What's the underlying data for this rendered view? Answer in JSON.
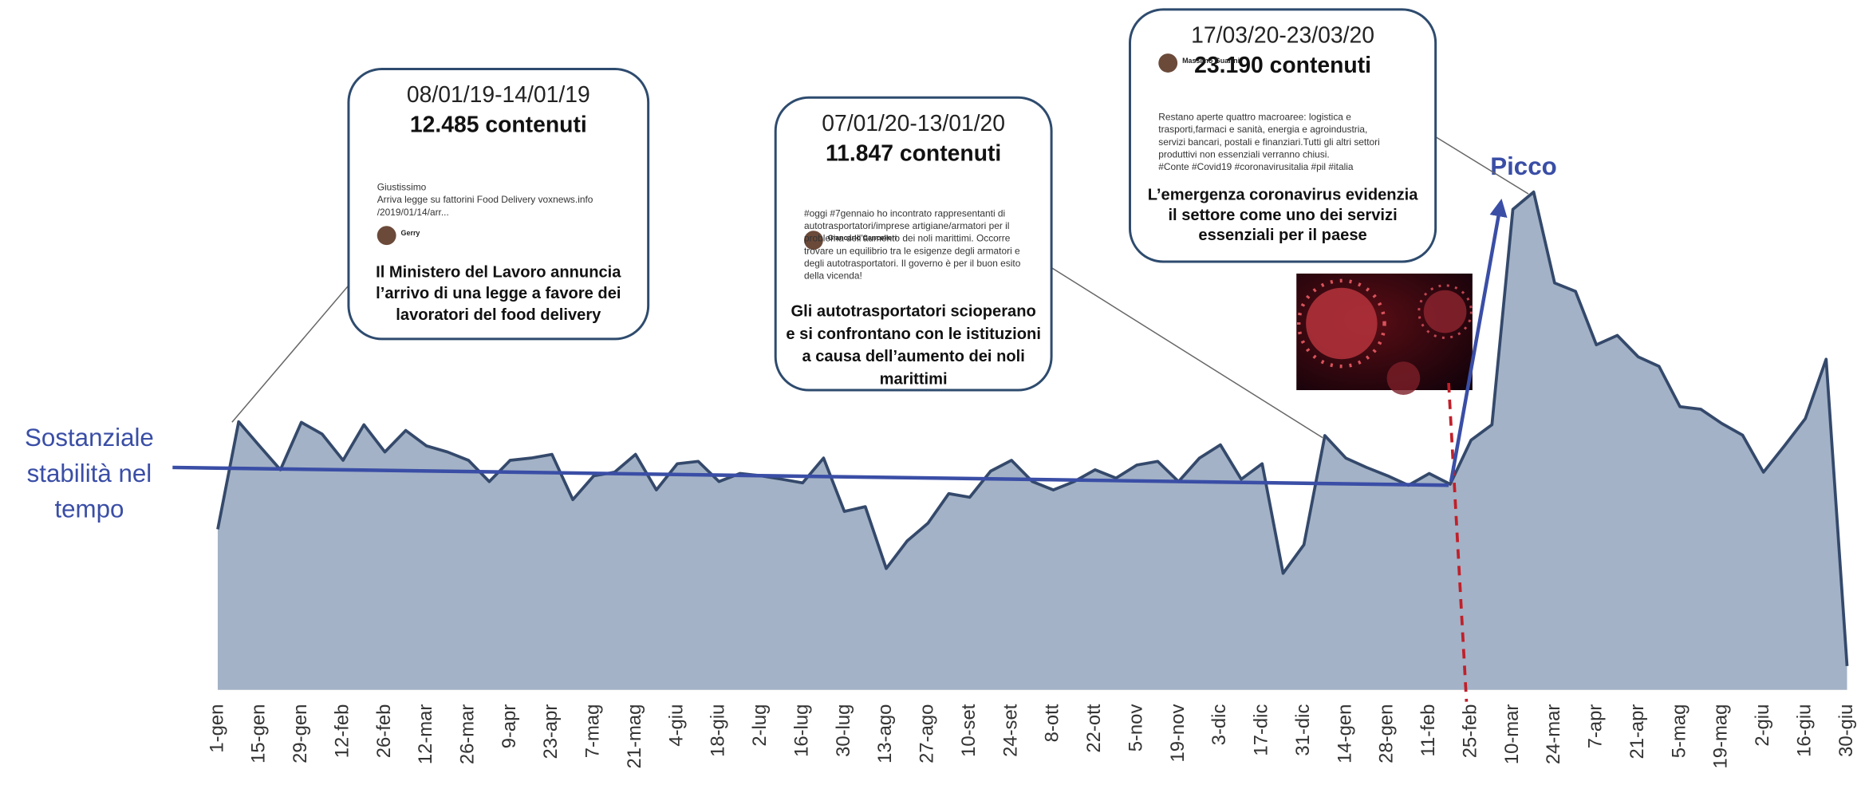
{
  "chart_data": {
    "type": "area",
    "categories": [
      "1-gen",
      null,
      "15-gen",
      null,
      "29-gen",
      null,
      "12-feb",
      null,
      "26-feb",
      null,
      "12-mar",
      null,
      "26-mar",
      null,
      "9-apr",
      null,
      "23-apr",
      null,
      "7-mag",
      null,
      "21-mag",
      null,
      "4-giu",
      null,
      "18-giu",
      null,
      "2-lug",
      null,
      "16-lug",
      null,
      "30-lug",
      null,
      "13-ago",
      null,
      "27-ago",
      null,
      "10-set",
      null,
      "24-set",
      null,
      "8-ott",
      null,
      "22-ott",
      null,
      "5-nov",
      null,
      "19-nov",
      null,
      "3-dic",
      null,
      "17-dic",
      null,
      "31-dic",
      null,
      "14-gen",
      null,
      "28-gen",
      null,
      "11-feb",
      null,
      "25-feb",
      null,
      "10-mar",
      null,
      "24-mar",
      null,
      "7-apr",
      null,
      "21-apr",
      null,
      "5-mag",
      null,
      "19-mag",
      null,
      "2-giu",
      null,
      "16-giu",
      null,
      "30-giu"
    ],
    "values": [
      7480,
      12485,
      11360,
      10250,
      12460,
      11910,
      10690,
      12350,
      11080,
      12080,
      11360,
      11080,
      10690,
      9700,
      10690,
      10800,
      10970,
      8860,
      9970,
      10140,
      10970,
      9310,
      10530,
      10640,
      9700,
      10080,
      9970,
      9810,
      9640,
      10800,
      8310,
      8530,
      5650,
      6930,
      7760,
      9140,
      8970,
      10190,
      10690,
      9700,
      9310,
      9700,
      10250,
      9860,
      10470,
      10640,
      9700,
      10800,
      11410,
      9810,
      10530,
      5430,
      6760,
      11847,
      10800,
      10360,
      9970,
      9530,
      10080,
      9580,
      11630,
      12350,
      22380,
      23190,
      18950,
      18560,
      16070,
      16510,
      15510,
      15070,
      13190,
      13070,
      12410,
      11860,
      10140,
      11360,
      12630,
      15400,
      1110
    ],
    "color": "#a3b2c6",
    "line_color": "#34496b",
    "ylim": [
      0,
      25000
    ],
    "left_note": [
      "Sostanziale",
      "stabilità nel",
      "tempo"
    ],
    "peak_note": "Picco",
    "annotations": [
      {
        "period": "08/01/19-14/01/19",
        "count": "12.485 contenuti",
        "author": "Gerry",
        "tweet": [
          "Giustissimo",
          "Arriva legge su fattorini Food Delivery voxnews.info",
          "/2019/01/14/arr..."
        ],
        "caption": [
          "Il Ministero del Lavoro annuncia",
          "l’arrivo di una legge a favore dei",
          "lavoratori del food delivery"
        ]
      },
      {
        "period": "07/01/20-13/01/20",
        "count": "11.847 contenuti",
        "author": "Giancarlo Cancelleri",
        "tweet": [
          "#oggi #7gennaio ho incontrato rappresentanti di",
          "autotrasportatori/imprese artigiane/armatori per il",
          "problema dell'aumento dei noli marittimi. Occorre",
          "trovare un equilibrio tra le esigenze degli armatori e",
          "degli autotrasportatori. Il governo è per il buon esito",
          "della vicenda!"
        ],
        "caption": [
          "Gli autotrasportatori scioperano",
          "e si confrontano con le istituzioni",
          "a causa dell’aumento dei noli",
          "marittimi"
        ]
      },
      {
        "period": "17/03/20-23/03/20",
        "count": "23.190 contenuti",
        "author": "Massimo Guarini",
        "tweet": [
          "Restano aperte quattro macroaree: logistica e",
          "trasporti,farmaci e sanità, energia e agroindustria,",
          "servizi bancari, postali e finanziari.Tutti gli altri settori",
          "produttivi non essenziali verranno chiusi.",
          "#Conte #Covid19 #coronavirusitalia #pil #italia"
        ],
        "caption": [
          "L’emergenza coronavirus evidenzia",
          "il settore come uno dei servizi",
          "essenziali per il paese"
        ]
      }
    ]
  }
}
